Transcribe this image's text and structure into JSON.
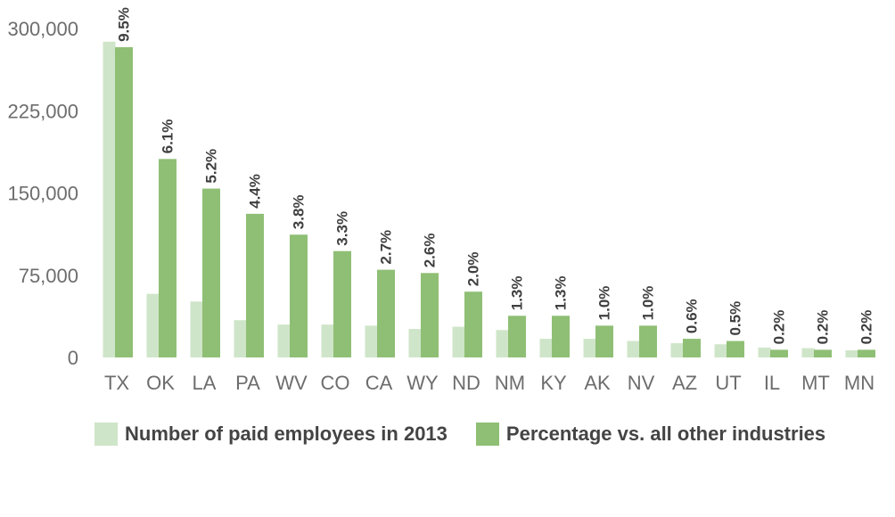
{
  "colors": {
    "series_0": "#cfe5c9",
    "series_1": "#8fbf75",
    "axis_text": "#6d6d6d",
    "label_text": "#3f3f3f"
  },
  "chart_data": {
    "type": "bar",
    "categories": [
      "TX",
      "OK",
      "LA",
      "PA",
      "WV",
      "CO",
      "CA",
      "WY",
      "ND",
      "NM",
      "KY",
      "AK",
      "NV",
      "AZ",
      "UT",
      "IL",
      "MT",
      "MN"
    ],
    "series": [
      {
        "name": "Number of paid employees in 2013",
        "values": [
          288000,
          58000,
          51000,
          34000,
          30000,
          30000,
          29000,
          26000,
          28000,
          25000,
          17000,
          17000,
          15000,
          13000,
          12000,
          9000,
          8500,
          6500
        ]
      },
      {
        "name": "Percentage vs. all other industries",
        "values": [
          283000,
          181000,
          154000,
          131000,
          112000,
          97000,
          80000,
          77000,
          60000,
          38000,
          38000,
          29000,
          29000,
          17000,
          15000,
          7000,
          7000,
          7000
        ],
        "data_labels": [
          "9.5%",
          "6.1%",
          "5.2%",
          "4.4%",
          "3.8%",
          "3.3%",
          "2.7%",
          "2.6%",
          "2.0%",
          "1.3%",
          "1.3%",
          "1.0%",
          "1.0%",
          "0.6%",
          "0.5%",
          "0.2%",
          "0.2%",
          "0.2%"
        ]
      }
    ],
    "yticks": [
      0,
      75000,
      150000,
      225000,
      300000
    ],
    "ytick_labels": [
      "0",
      "75,000",
      "150,000",
      "225,000",
      "300,000"
    ],
    "ylim": [
      0,
      300000
    ],
    "title": "",
    "xlabel": "",
    "ylabel": "",
    "grid": false,
    "legend_position": "bottom"
  }
}
